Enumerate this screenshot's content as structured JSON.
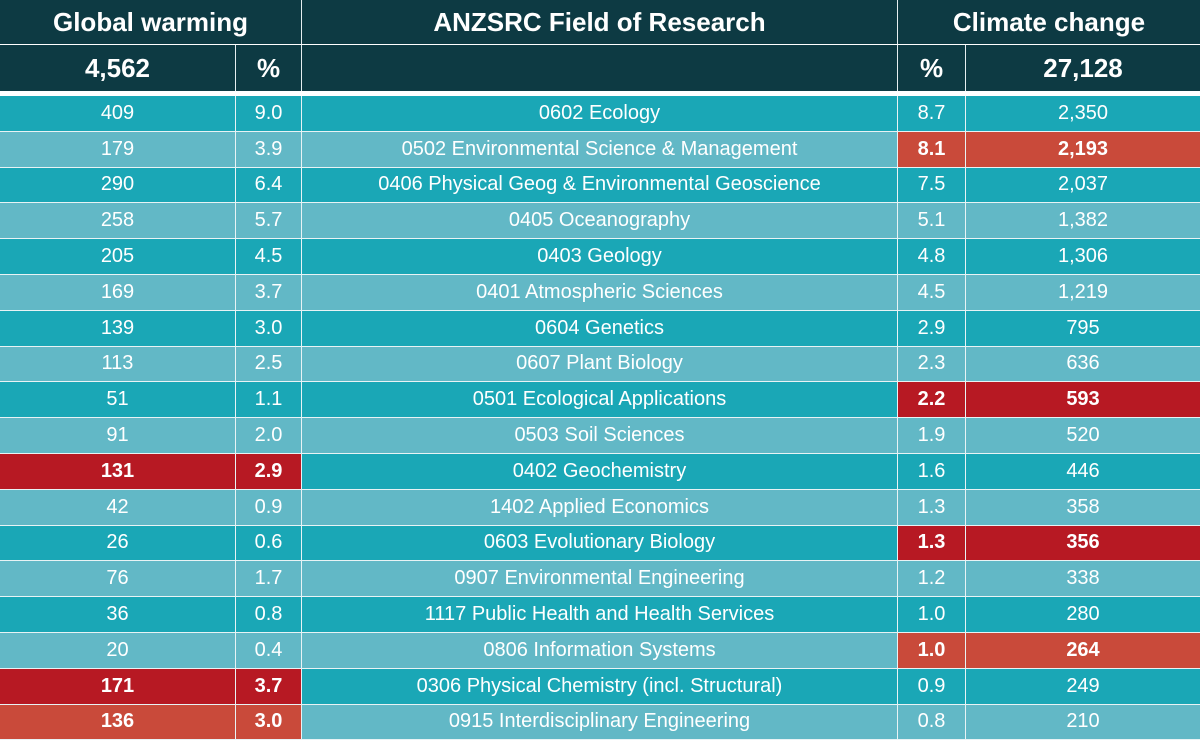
{
  "header": {
    "global_warming": "Global warming",
    "field": "ANZSRC Field of Research",
    "climate_change": "Climate change",
    "gw_total": "4,562",
    "gw_pct": "%",
    "field_sub": "",
    "cc_pct": "%",
    "cc_total": "27,128"
  },
  "colors": {
    "header_bg": "#0d3a43",
    "row_dark": "#1aa7b6",
    "row_light": "#62b8c6",
    "highlight_red": "#b71923",
    "highlight_orange": "#c94a3a"
  },
  "rows": [
    {
      "gw": "409",
      "gw_pct": "9.0",
      "field": "0602 Ecology",
      "cc_pct": "8.7",
      "cc": "2,350",
      "gw_hl": "",
      "cc_hl": ""
    },
    {
      "gw": "179",
      "gw_pct": "3.9",
      "field": "0502 Environmental Science & Management",
      "cc_pct": "8.1",
      "cc": "2,193",
      "gw_hl": "",
      "cc_hl": "orange"
    },
    {
      "gw": "290",
      "gw_pct": "6.4",
      "field": "0406 Physical Geog & Environmental Geoscience",
      "cc_pct": "7.5",
      "cc": "2,037",
      "gw_hl": "",
      "cc_hl": ""
    },
    {
      "gw": "258",
      "gw_pct": "5.7",
      "field": "0405 Oceanography",
      "cc_pct": "5.1",
      "cc": "1,382",
      "gw_hl": "",
      "cc_hl": ""
    },
    {
      "gw": "205",
      "gw_pct": "4.5",
      "field": "0403 Geology",
      "cc_pct": "4.8",
      "cc": "1,306",
      "gw_hl": "",
      "cc_hl": ""
    },
    {
      "gw": "169",
      "gw_pct": "3.7",
      "field": "0401 Atmospheric Sciences",
      "cc_pct": "4.5",
      "cc": "1,219",
      "gw_hl": "",
      "cc_hl": ""
    },
    {
      "gw": "139",
      "gw_pct": "3.0",
      "field": "0604 Genetics",
      "cc_pct": "2.9",
      "cc": "795",
      "gw_hl": "",
      "cc_hl": ""
    },
    {
      "gw": "113",
      "gw_pct": "2.5",
      "field": "0607 Plant Biology",
      "cc_pct": "2.3",
      "cc": "636",
      "gw_hl": "",
      "cc_hl": ""
    },
    {
      "gw": "51",
      "gw_pct": "1.1",
      "field": "0501 Ecological Applications",
      "cc_pct": "2.2",
      "cc": "593",
      "gw_hl": "",
      "cc_hl": "dark"
    },
    {
      "gw": "91",
      "gw_pct": "2.0",
      "field": "0503 Soil Sciences",
      "cc_pct": "1.9",
      "cc": "520",
      "gw_hl": "",
      "cc_hl": ""
    },
    {
      "gw": "131",
      "gw_pct": "2.9",
      "field": "0402 Geochemistry",
      "cc_pct": "1.6",
      "cc": "446",
      "gw_hl": "dark",
      "cc_hl": ""
    },
    {
      "gw": "42",
      "gw_pct": "0.9",
      "field": "1402 Applied Economics",
      "cc_pct": "1.3",
      "cc": "358",
      "gw_hl": "",
      "cc_hl": ""
    },
    {
      "gw": "26",
      "gw_pct": "0.6",
      "field": "0603 Evolutionary Biology",
      "cc_pct": "1.3",
      "cc": "356",
      "gw_hl": "",
      "cc_hl": "dark"
    },
    {
      "gw": "76",
      "gw_pct": "1.7",
      "field": "0907 Environmental Engineering",
      "cc_pct": "1.2",
      "cc": "338",
      "gw_hl": "",
      "cc_hl": ""
    },
    {
      "gw": "36",
      "gw_pct": "0.8",
      "field": "1117 Public Health and Health Services",
      "cc_pct": "1.0",
      "cc": "280",
      "gw_hl": "",
      "cc_hl": ""
    },
    {
      "gw": "20",
      "gw_pct": "0.4",
      "field": "0806 Information Systems",
      "cc_pct": "1.0",
      "cc": "264",
      "gw_hl": "",
      "cc_hl": "orange"
    },
    {
      "gw": "171",
      "gw_pct": "3.7",
      "field": "0306 Physical Chemistry (incl. Structural)",
      "cc_pct": "0.9",
      "cc": "249",
      "gw_hl": "dark",
      "cc_hl": ""
    },
    {
      "gw": "136",
      "gw_pct": "3.0",
      "field": "0915 Interdisciplinary Engineering",
      "cc_pct": "0.8",
      "cc": "210",
      "gw_hl": "orange",
      "cc_hl": ""
    }
  ]
}
